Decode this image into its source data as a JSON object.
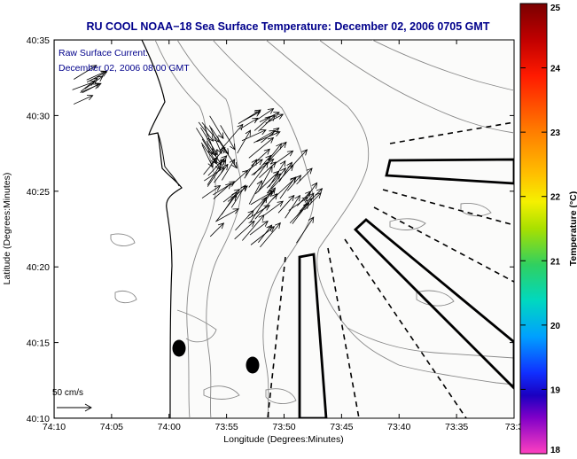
{
  "title": "RU COOL  NOAA−18  Sea Surface Temperature:  December 02, 2006 0705 GMT",
  "overlay": {
    "line1": "Raw Surface Current:",
    "line2": "December 02, 2006 08:00 GMT"
  },
  "scale_label": "50 cm/s",
  "axes": {
    "xlabel": "Longitude (Degrees:Minutes)",
    "ylabel": "Latitude (Degrees:Minutes)",
    "xticks": [
      "74:10",
      "74:05",
      "74:00",
      "73:55",
      "73:50",
      "73:45",
      "73:40",
      "73:35",
      "73:3"
    ],
    "yticks": [
      "40:35",
      "40:30",
      "40:25",
      "40:20",
      "40:15",
      "40:10"
    ]
  },
  "colorbar": {
    "label": "Temperature (°C)",
    "ticks": [
      "25",
      "24",
      "23",
      "22",
      "21",
      "20",
      "19",
      "18"
    ]
  },
  "colors": {
    "title": "#00008b",
    "map_background": "#fbfbfa",
    "land": "#ffffff",
    "vectors": "#000000"
  }
}
